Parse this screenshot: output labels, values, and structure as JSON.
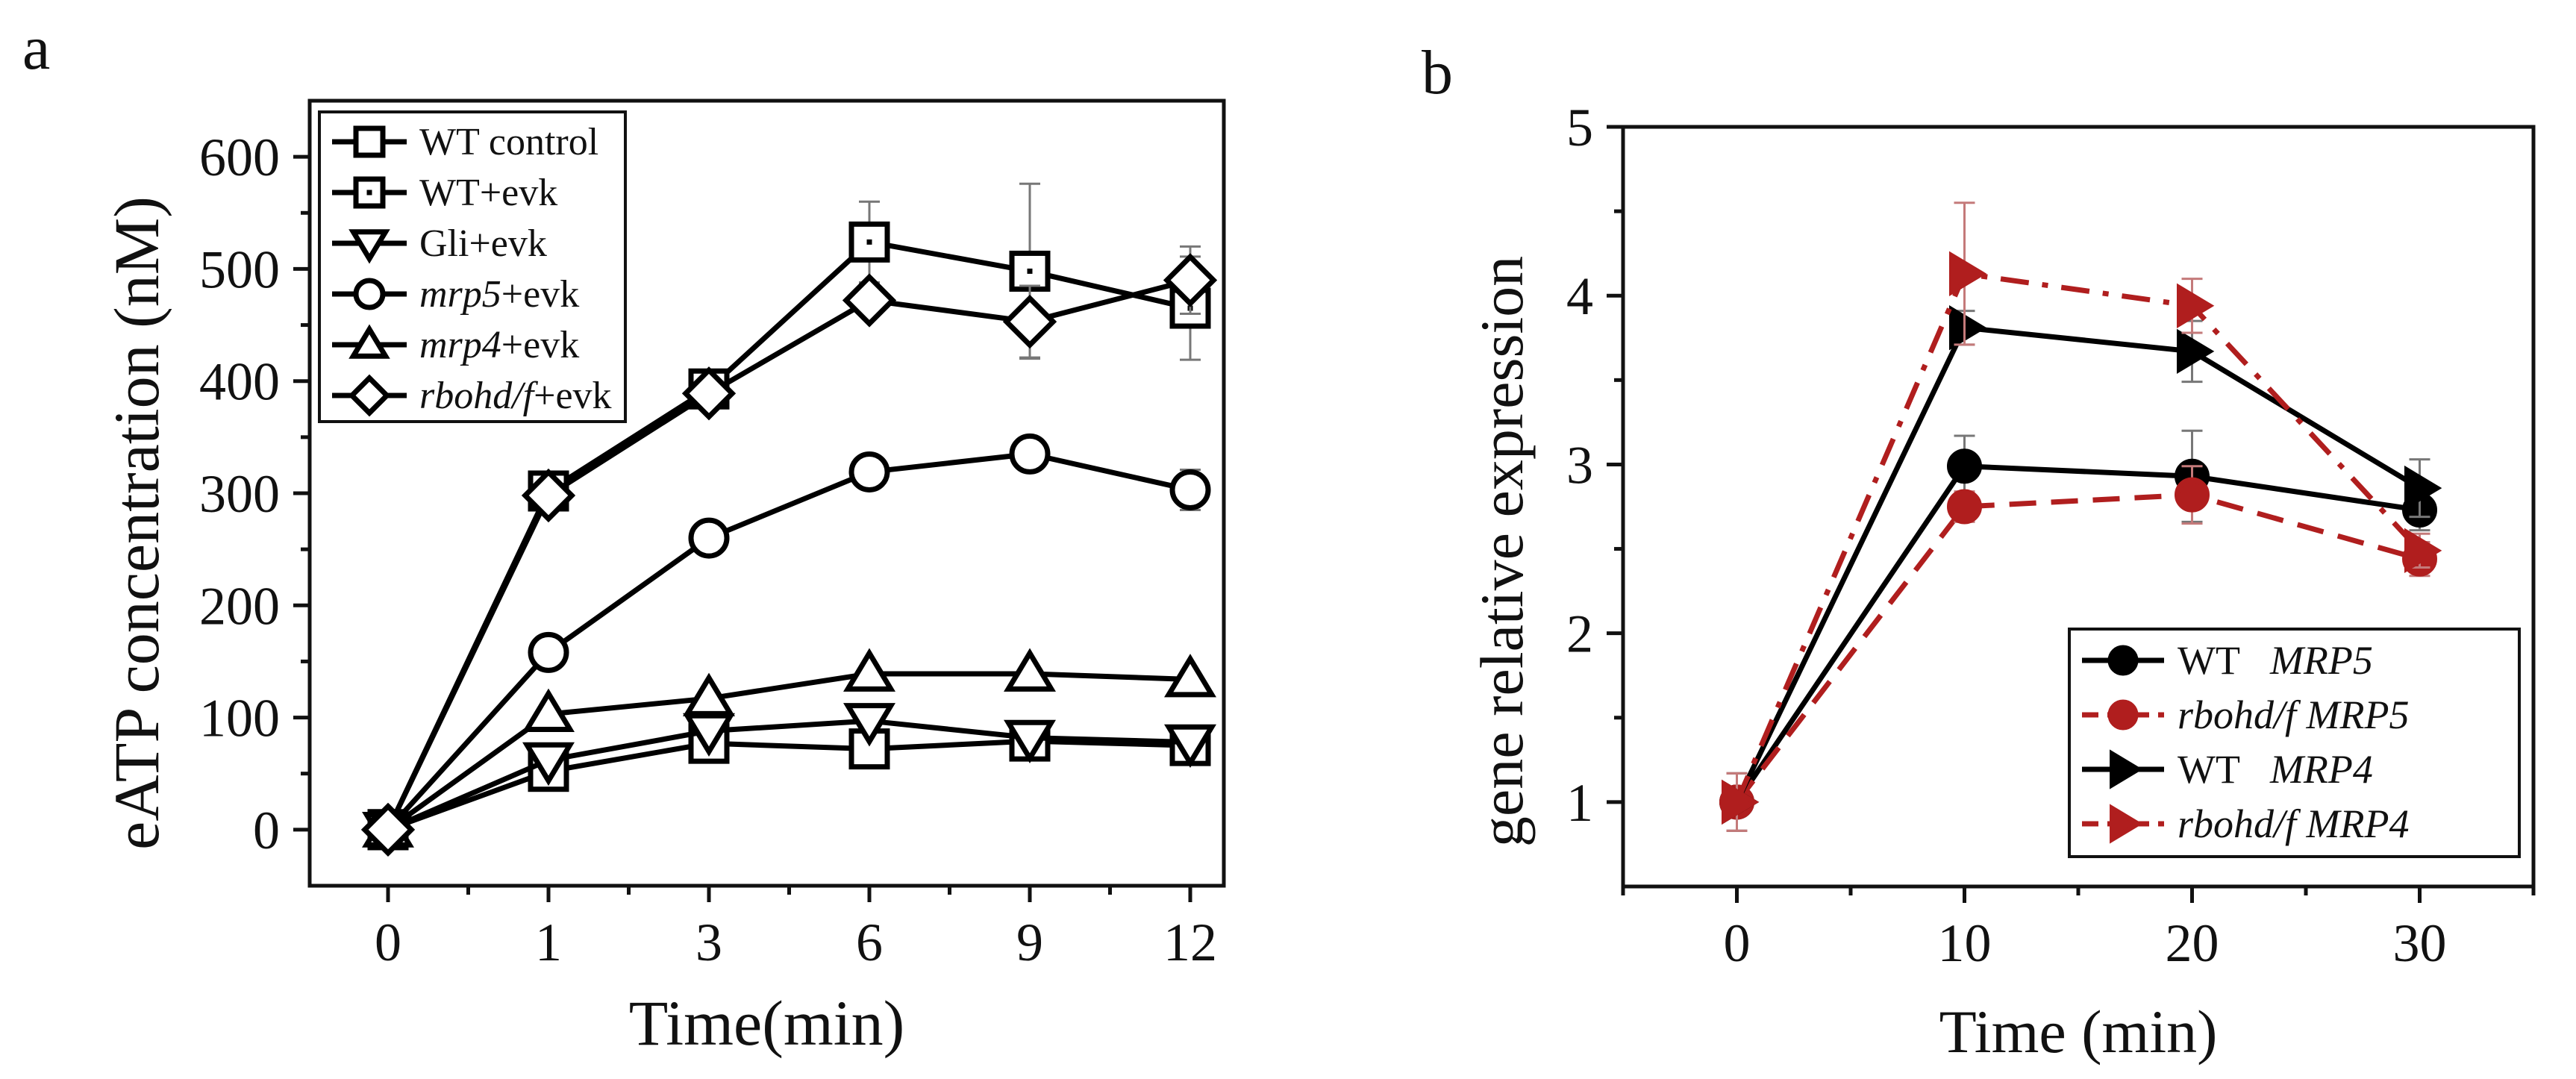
{
  "chart_data": [
    {
      "type": "line",
      "panel_label": "a",
      "xlabel": "Time(min)",
      "ylabel": "eATP concentration (nM)",
      "categories": [
        "0",
        "1",
        "3",
        "6",
        "9",
        "12"
      ],
      "ylim": [
        -50,
        650
      ],
      "yticks": [
        0,
        100,
        200,
        300,
        400,
        500,
        600
      ],
      "legend_position": "top-left",
      "series": [
        {
          "name": "WT control",
          "name_italic": "",
          "name_rest": "WT control",
          "marker": "square",
          "color": "#000000",
          "values": [
            0,
            52,
            77,
            72,
            79,
            75
          ],
          "errors": [
            0,
            0,
            0,
            0,
            0,
            0
          ]
        },
        {
          "name": "WT+evk",
          "name_italic": "",
          "name_rest": "WT+evk",
          "marker": "square-dot",
          "color": "#000000",
          "values": [
            0,
            302,
            393,
            524,
            498,
            465
          ],
          "errors": [
            0,
            0,
            0,
            36,
            78,
            46
          ]
        },
        {
          "name": "Gli+evk",
          "name_italic": "",
          "name_rest": "Gli+evk",
          "marker": "triangle-down",
          "color": "#000000",
          "values": [
            0,
            62,
            88,
            97,
            82,
            78
          ],
          "errors": [
            0,
            0,
            0,
            0,
            0,
            0
          ]
        },
        {
          "name": "mrp5+evk",
          "name_italic": "mrp5",
          "name_rest": "+evk",
          "marker": "circle",
          "color": "#000000",
          "values": [
            0,
            158,
            260,
            319,
            335,
            303
          ],
          "errors": [
            0,
            14,
            0,
            0,
            0,
            18
          ]
        },
        {
          "name": "mrp4+evk",
          "name_italic": "mrp4",
          "name_rest": "+evk",
          "marker": "triangle-up",
          "color": "#000000",
          "values": [
            0,
            103,
            117,
            139,
            139,
            134
          ],
          "errors": [
            0,
            0,
            0,
            0,
            0,
            0
          ]
        },
        {
          "name": "rbohd/f+evk",
          "name_italic": "rbohd/f",
          "name_rest": "+evk",
          "marker": "diamond",
          "color": "#000000",
          "values": [
            0,
            298,
            389,
            472,
            453,
            490
          ],
          "errors": [
            0,
            0,
            0,
            0,
            32,
            30
          ]
        }
      ]
    },
    {
      "type": "line",
      "panel_label": "b",
      "xlabel": "Time (min)",
      "ylabel": "gene relative expression",
      "x": [
        0,
        10,
        20,
        30
      ],
      "xticks": [
        0,
        10,
        20,
        30
      ],
      "xlim": [
        -5,
        35
      ],
      "ylim": [
        0.5,
        5
      ],
      "yticks": [
        1,
        2,
        3,
        4,
        5
      ],
      "legend_position": "bottom-right",
      "series": [
        {
          "name": "WT MRP5",
          "name_plain": "WT",
          "name_italic": "MRP5",
          "plain_first": true,
          "marker": "circle",
          "color": "#000000",
          "dash": "solid",
          "values": [
            1.0,
            2.99,
            2.93,
            2.73
          ],
          "errors": [
            0.17,
            0.18,
            0.27,
            0.12
          ]
        },
        {
          "name": "rbohd/f MRP5",
          "name_plain": "",
          "name_italic": "rbohd/f   MRP5",
          "plain_first": false,
          "marker": "circle",
          "color": "#b01e1e",
          "dash": "dashed",
          "values": [
            1.0,
            2.75,
            2.82,
            2.44
          ],
          "errors": [
            0.17,
            0.09,
            0.17,
            0.1
          ]
        },
        {
          "name": "WT MRP4",
          "name_plain": "WT",
          "name_italic": "MRP4",
          "plain_first": true,
          "marker": "triangle-right",
          "color": "#000000",
          "dash": "solid",
          "values": [
            1.0,
            3.81,
            3.67,
            2.86
          ],
          "errors": [
            0.17,
            0.1,
            0.18,
            0.17
          ]
        },
        {
          "name": "rbohd/f MRP4",
          "name_plain": "",
          "name_italic": "rbohd/f   MRP4",
          "plain_first": false,
          "marker": "triangle-right",
          "color": "#b01e1e",
          "dash": "dashdot",
          "values": [
            1.0,
            4.13,
            3.94,
            2.49
          ],
          "errors": [
            0.17,
            0.42,
            0.16,
            0.1
          ]
        }
      ]
    }
  ]
}
